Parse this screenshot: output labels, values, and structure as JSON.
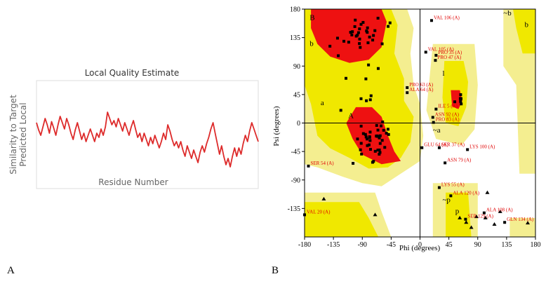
{
  "panels": {
    "a": "A",
    "b": "B"
  },
  "colors": {
    "quality_line": "#dd2a2a",
    "core": "#ee1111",
    "allowed": "#f0e800",
    "generous": "#f4ee90",
    "outside": "#ffffff",
    "label": "#e00000"
  },
  "chart_data": [
    {
      "type": "line",
      "title": "Local Quality Estimate",
      "xlabel": "Residue Number",
      "ylabel": "Predicted Local Similarity to Target",
      "series": [
        {
          "values": [
            0.62,
            0.55,
            0.5,
            0.58,
            0.66,
            0.6,
            0.52,
            0.63,
            0.57,
            0.5,
            0.6,
            0.68,
            0.62,
            0.56,
            0.66,
            0.6,
            0.52,
            0.46,
            0.55,
            0.62,
            0.54,
            0.46,
            0.52,
            0.44,
            0.5,
            0.56,
            0.5,
            0.44,
            0.52,
            0.48,
            0.56,
            0.5,
            0.58,
            0.72,
            0.66,
            0.6,
            0.64,
            0.58,
            0.66,
            0.6,
            0.54,
            0.62,
            0.56,
            0.5,
            0.58,
            0.64,
            0.56,
            0.48,
            0.52,
            0.44,
            0.52,
            0.46,
            0.4,
            0.48,
            0.42,
            0.5,
            0.44,
            0.38,
            0.44,
            0.52,
            0.46,
            0.6,
            0.54,
            0.46,
            0.4,
            0.44,
            0.38,
            0.44,
            0.36,
            0.3,
            0.4,
            0.34,
            0.28,
            0.36,
            0.3,
            0.24,
            0.34,
            0.4,
            0.34,
            0.42,
            0.48,
            0.56,
            0.62,
            0.52,
            0.42,
            0.32,
            0.4,
            0.3,
            0.22,
            0.28,
            0.2,
            0.3,
            0.38,
            0.3,
            0.38,
            0.32,
            0.42,
            0.5,
            0.44,
            0.54,
            0.62,
            0.56,
            0.5,
            0.44
          ]
        }
      ]
    },
    {
      "type": "scatter",
      "xlabel": "Phi (degrees)",
      "ylabel": "Psi (degrees)",
      "xlim": [
        -180,
        180
      ],
      "ylim": [
        -180,
        180
      ],
      "xticks": [
        "-180",
        "-135",
        "-90",
        "-45",
        "0",
        "45",
        "90",
        "135",
        "180"
      ],
      "yticks": [
        "180",
        "135",
        "90",
        "45",
        "0",
        "-45",
        "-90",
        "-135"
      ],
      "regions": [
        {
          "label": "B",
          "x": -172,
          "y": 163
        },
        {
          "label": "b",
          "x": -172,
          "y": 122
        },
        {
          "label": "a",
          "x": -155,
          "y": 28
        },
        {
          "label": "A",
          "x": -112,
          "y": 8
        },
        {
          "label": "l",
          "x": 35,
          "y": 75
        },
        {
          "label": "~b",
          "x": 130,
          "y": 170
        },
        {
          "label": "b",
          "x": 163,
          "y": 152
        },
        {
          "label": "~a",
          "x": 20,
          "y": -15
        },
        {
          "label": "~p",
          "x": 35,
          "y": -125
        },
        {
          "label": "p",
          "x": 55,
          "y": -143
        }
      ],
      "labeled_residues": [
        {
          "label": "VAL 106 (A)",
          "x": 18,
          "y": 162
        },
        {
          "label": "VAL 105 (A)",
          "x": 9,
          "y": 112
        },
        {
          "label": "PRO 35 (A)",
          "x": 25,
          "y": 107
        },
        {
          "label": "PRO 47 (A)",
          "x": 24,
          "y": 99
        },
        {
          "label": "PRO 63 (A)",
          "x": -20,
          "y": 56
        },
        {
          "label": "ALA 64 (A)",
          "x": -20,
          "y": 48
        },
        {
          "label": "ILE 5 (A)",
          "x": 25,
          "y": 22
        },
        {
          "label": "ASN 92 (A)",
          "x": 20,
          "y": 9
        },
        {
          "label": "PRO 83 (A)",
          "x": 21,
          "y": 1
        },
        {
          "label": "GLU 64 (A)",
          "x": 3,
          "y": -39
        },
        {
          "label": "SER 37 (A)",
          "x": 30,
          "y": -39
        },
        {
          "label": "LYS 100 (A)",
          "x": 74,
          "y": -42
        },
        {
          "label": "ASN 79 (A)",
          "x": 39,
          "y": -63
        },
        {
          "label": "SER 54 (A)",
          "x": -174,
          "y": -68
        },
        {
          "label": "LYS 55 (A)",
          "x": 30,
          "y": -102
        },
        {
          "label": "ALA 120 (A)",
          "x": 48,
          "y": -115
        },
        {
          "label": "ALA 108 (A)",
          "x": 100,
          "y": -142
        },
        {
          "label": "SER 129 (A)",
          "x": 71,
          "y": -152
        },
        {
          "label": "GLN 134 (A)",
          "x": 132,
          "y": -157
        },
        {
          "label": "VAL 20 (A)",
          "x": -180,
          "y": -145
        }
      ]
    }
  ]
}
